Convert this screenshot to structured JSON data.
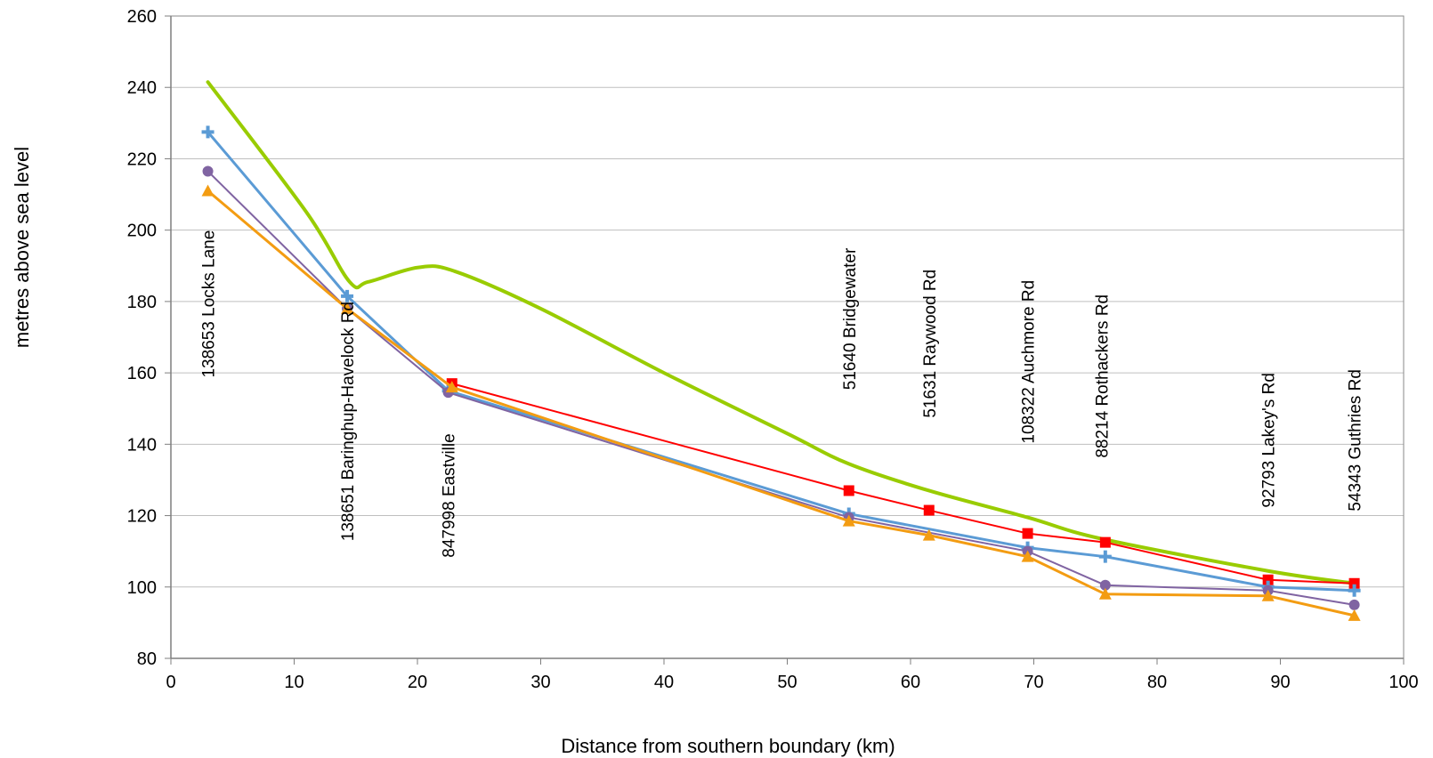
{
  "chart_data": {
    "type": "line",
    "xlabel": "Distance from southern boundary (km)",
    "ylabel": "metres above sea level",
    "xlim": [
      0,
      100
    ],
    "ylim": [
      80,
      260
    ],
    "xticks": [
      0,
      10,
      20,
      30,
      40,
      50,
      60,
      70,
      80,
      90,
      100
    ],
    "yticks": [
      80,
      100,
      120,
      140,
      160,
      180,
      200,
      220,
      240,
      260
    ],
    "grid": "horizontal",
    "legend": "none",
    "series": [
      {
        "color": "#99cc00",
        "marker": "none",
        "smooth": true,
        "points": [
          [
            3,
            241.5
          ],
          [
            11,
            205
          ],
          [
            14.5,
            185.5
          ],
          [
            16,
            185.5
          ],
          [
            20,
            189.5
          ],
          [
            23,
            188.5
          ],
          [
            30,
            178
          ],
          [
            40,
            160
          ],
          [
            50,
            143
          ],
          [
            55,
            134.5
          ],
          [
            61.5,
            127
          ],
          [
            69.5,
            119.5
          ],
          [
            75.5,
            113.5
          ],
          [
            89,
            104.5
          ],
          [
            96,
            101
          ]
        ]
      },
      {
        "color": "#ff0000",
        "marker": "square",
        "points": [
          [
            22.8,
            157
          ],
          [
            55,
            127
          ],
          [
            61.5,
            121.5
          ],
          [
            69.5,
            115
          ],
          [
            75.8,
            112.5
          ],
          [
            89,
            102
          ],
          [
            96,
            101
          ]
        ]
      },
      {
        "color": "#5b9bd5",
        "marker": "plus",
        "points": [
          [
            3,
            227.5
          ],
          [
            14.3,
            181.5
          ],
          [
            22.5,
            155
          ],
          [
            55,
            120.5
          ],
          [
            69.5,
            111
          ],
          [
            75.8,
            108.5
          ],
          [
            89,
            100
          ],
          [
            96,
            99
          ]
        ]
      },
      {
        "color": "#8064a2",
        "marker": "circle",
        "points": [
          [
            3,
            216.5
          ],
          [
            14.3,
            178
          ],
          [
            22.5,
            154.5
          ],
          [
            55,
            119.5
          ],
          [
            69.5,
            110
          ],
          [
            75.8,
            100.5
          ],
          [
            89,
            99
          ],
          [
            96,
            95
          ]
        ]
      },
      {
        "color": "#f39c12",
        "marker": "triangle",
        "points": [
          [
            3,
            211
          ],
          [
            14.3,
            178
          ],
          [
            22.8,
            156
          ],
          [
            55,
            118.5
          ],
          [
            61.5,
            114.5
          ],
          [
            69.5,
            108.5
          ],
          [
            75.8,
            98
          ],
          [
            89,
            97.5
          ],
          [
            96,
            92
          ]
        ]
      }
    ],
    "annotations": [
      {
        "text": "138653 Locks Lane",
        "x": 3,
        "y_top": 200
      },
      {
        "text": "138651 Baringhup-Havelock Rd",
        "x": 14.3,
        "y_top": 180
      },
      {
        "text": "847998 Eastville",
        "x": 22.5,
        "y_top": 143
      },
      {
        "text": "51640 Bridgewater",
        "x": 55,
        "y_top": 195
      },
      {
        "text": "51631 Raywood Rd",
        "x": 61.5,
        "y_top": 189
      },
      {
        "text": "108322 Auchmore Rd",
        "x": 69.5,
        "y_top": 186
      },
      {
        "text": "88214 Rothackers Rd",
        "x": 75.5,
        "y_top": 182
      },
      {
        "text": "92793 Lakey's Rd",
        "x": 89,
        "y_top": 160
      },
      {
        "text": "54343 Guthries Rd",
        "x": 96,
        "y_top": 161
      }
    ]
  }
}
